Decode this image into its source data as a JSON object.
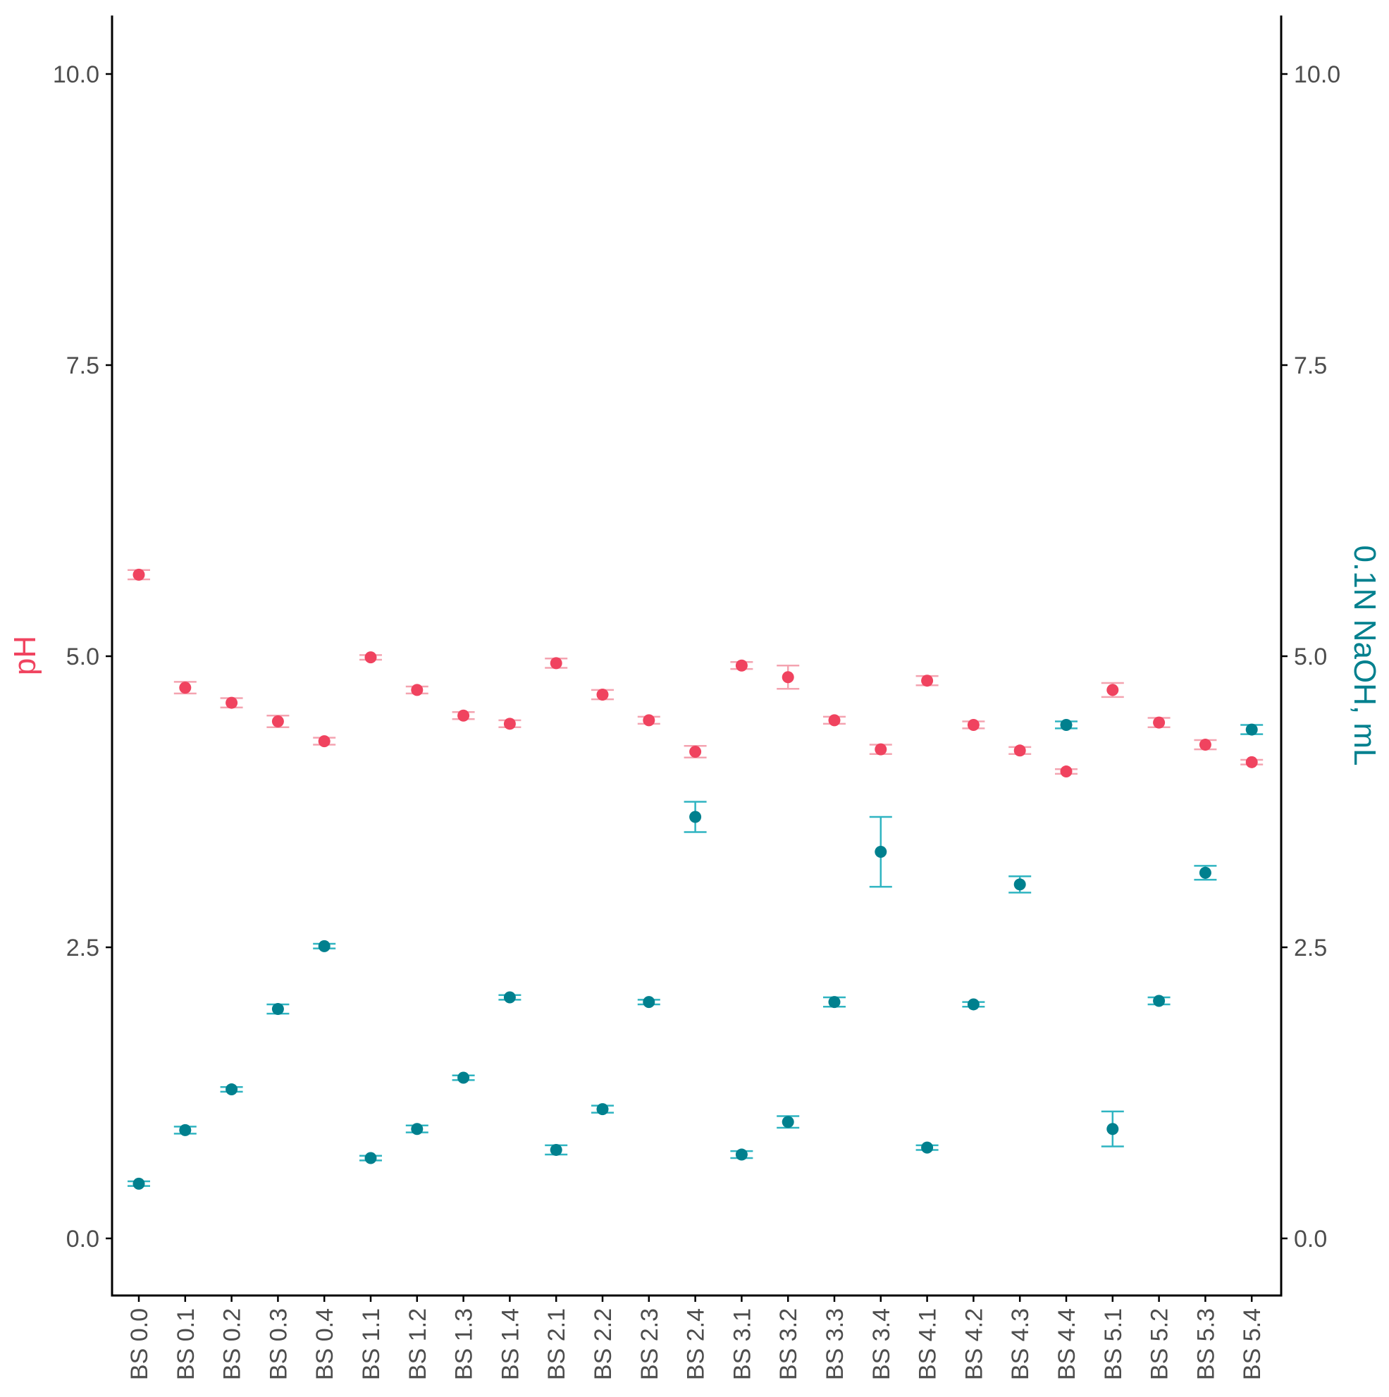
{
  "chart_data": {
    "type": "scatter",
    "categories": [
      "BS 0.0",
      "BS 0.1",
      "BS 0.2",
      "BS 0.3",
      "BS 0.4",
      "BS 1.1",
      "BS 1.2",
      "BS 1.3",
      "BS 1.4",
      "BS 2.1",
      "BS 2.2",
      "BS 2.3",
      "BS 2.4",
      "BS 3.1",
      "BS 3.2",
      "BS 3.3",
      "BS 3.4",
      "BS 4.1",
      "BS 4.2",
      "BS 4.3",
      "BS 4.4",
      "BS 5.1",
      "BS 5.2",
      "BS 5.3",
      "BS 5.4"
    ],
    "ylabel_left": "pH",
    "ylabel_right": "0.1N NaOH, mL",
    "ylim": [
      -0.5,
      10.5
    ],
    "yticks": [
      "0.0",
      "2.5",
      "5.0",
      "7.5",
      "10.0"
    ],
    "ytick_values": [
      0,
      2.5,
      5,
      7.5,
      10
    ],
    "colors": {
      "ph": "#f0435f",
      "ph_err": "#f4a3b0",
      "naoh": "#00808e",
      "naoh_err": "#2fb4c1",
      "axis": "#000000",
      "tick_text": "#4d4d4d"
    },
    "series": [
      {
        "name": "pH",
        "values": [
          5.7,
          4.73,
          4.6,
          4.44,
          4.27,
          4.99,
          4.71,
          4.49,
          4.42,
          4.94,
          4.67,
          4.45,
          4.18,
          4.92,
          4.82,
          4.45,
          4.2,
          4.79,
          4.41,
          4.19,
          4.01,
          4.71,
          4.43,
          4.24,
          4.09
        ],
        "errors": [
          0.04,
          0.05,
          0.04,
          0.05,
          0.03,
          0.02,
          0.03,
          0.03,
          0.03,
          0.04,
          0.04,
          0.03,
          0.05,
          0.03,
          0.1,
          0.03,
          0.04,
          0.04,
          0.03,
          0.03,
          0.02,
          0.06,
          0.04,
          0.04,
          0.02
        ]
      },
      {
        "name": "0.1N NaOH, mL",
        "values": [
          0.47,
          0.93,
          1.28,
          1.97,
          2.51,
          0.69,
          0.94,
          1.38,
          2.07,
          0.76,
          1.11,
          2.03,
          3.62,
          0.72,
          1.0,
          2.03,
          3.32,
          0.78,
          2.01,
          3.04,
          4.41,
          0.94,
          2.04,
          3.14,
          4.37
        ],
        "errors": [
          0.02,
          0.03,
          0.02,
          0.04,
          0.02,
          0.02,
          0.03,
          0.02,
          0.02,
          0.04,
          0.03,
          0.02,
          0.13,
          0.03,
          0.05,
          0.04,
          0.3,
          0.02,
          0.02,
          0.07,
          0.03,
          0.15,
          0.03,
          0.06,
          0.04
        ]
      }
    ],
    "grid": false,
    "legend": "none"
  }
}
